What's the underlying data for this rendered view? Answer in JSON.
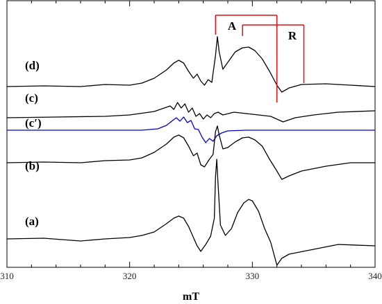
{
  "chart_data": {
    "type": "line",
    "xlabel": "mT",
    "xlim": [
      310,
      340
    ],
    "x_ticks": [
      310,
      320,
      330,
      340
    ],
    "y_axis_visible": false,
    "grid": false,
    "legend": "none",
    "colors": {
      "experimental": "#000000",
      "simulation": "#0000cc",
      "bracket": "#dd1111"
    },
    "series": [
      {
        "name": "(d)",
        "color": "#000000",
        "baseline": 125,
        "points": [
          [
            310,
            0
          ],
          [
            313,
            1
          ],
          [
            316,
            0
          ],
          [
            318,
            3
          ],
          [
            320,
            2
          ],
          [
            321,
            5
          ],
          [
            322,
            12
          ],
          [
            323,
            24
          ],
          [
            323.6,
            34
          ],
          [
            324,
            38
          ],
          [
            324.4,
            34
          ],
          [
            324.8,
            22
          ],
          [
            325.2,
            12
          ],
          [
            325.5,
            18
          ],
          [
            325.8,
            8
          ],
          [
            326.1,
            2
          ],
          [
            326.4,
            10
          ],
          [
            326.7,
            6
          ],
          [
            327.0,
            45
          ],
          [
            327.15,
            72
          ],
          [
            327.3,
            50
          ],
          [
            327.6,
            25
          ],
          [
            328.0,
            35
          ],
          [
            328.6,
            50
          ],
          [
            329.2,
            56
          ],
          [
            329.7,
            57
          ],
          [
            330.2,
            52
          ],
          [
            330.8,
            40
          ],
          [
            331.4,
            22
          ],
          [
            332.0,
            2
          ],
          [
            332.4,
            -8
          ],
          [
            333,
            -2
          ],
          [
            334,
            3
          ],
          [
            336,
            4
          ],
          [
            338,
            2
          ],
          [
            340,
            0
          ]
        ]
      },
      {
        "name": "(c)",
        "color": "#000000",
        "baseline": 170,
        "points": [
          [
            310,
            0
          ],
          [
            314,
            1
          ],
          [
            318,
            2
          ],
          [
            320,
            4
          ],
          [
            322,
            9
          ],
          [
            323.3,
            17
          ],
          [
            323.6,
            12
          ],
          [
            323.9,
            22
          ],
          [
            324.2,
            14
          ],
          [
            324.5,
            20
          ],
          [
            324.8,
            8
          ],
          [
            325.1,
            14
          ],
          [
            325.4,
            2
          ],
          [
            325.7,
            6
          ],
          [
            326.0,
            -2
          ],
          [
            326.3,
            4
          ],
          [
            326.6,
            0
          ],
          [
            326.9,
            6
          ],
          [
            327.2,
            8
          ],
          [
            327.6,
            4
          ],
          [
            328.5,
            8
          ],
          [
            329.5,
            6
          ],
          [
            330.5,
            4
          ],
          [
            331.5,
            2
          ],
          [
            332.5,
            -6
          ],
          [
            333.5,
            0
          ],
          [
            335,
            4
          ],
          [
            337,
            8
          ],
          [
            340,
            10
          ]
        ]
      },
      {
        "name": "(c′)",
        "color": "#0000cc",
        "baseline": 188,
        "points": [
          [
            310,
            0
          ],
          [
            321,
            0
          ],
          [
            322.3,
            2
          ],
          [
            323.0,
            7
          ],
          [
            323.5,
            14
          ],
          [
            323.8,
            18
          ],
          [
            324.1,
            13
          ],
          [
            324.4,
            19
          ],
          [
            324.7,
            11
          ],
          [
            325.0,
            14
          ],
          [
            325.3,
            2
          ],
          [
            325.6,
            1
          ],
          [
            325.9,
            -10
          ],
          [
            326.2,
            -18
          ],
          [
            326.5,
            -12
          ],
          [
            326.8,
            -16
          ],
          [
            327.1,
            -8
          ],
          [
            327.5,
            -4
          ],
          [
            328.0,
            -1
          ],
          [
            329.5,
            0
          ],
          [
            340,
            0
          ]
        ]
      },
      {
        "name": "(b)",
        "color": "#000000",
        "baseline": 235,
        "points": [
          [
            310,
            0
          ],
          [
            313,
            1
          ],
          [
            316,
            0
          ],
          [
            318,
            3
          ],
          [
            320,
            4
          ],
          [
            321,
            7
          ],
          [
            322,
            15
          ],
          [
            323,
            27
          ],
          [
            323.6,
            37
          ],
          [
            324,
            40
          ],
          [
            324.4,
            36
          ],
          [
            324.8,
            24
          ],
          [
            325.2,
            10
          ],
          [
            325.5,
            14
          ],
          [
            325.8,
            -3
          ],
          [
            326.1,
            -6
          ],
          [
            326.5,
            5
          ],
          [
            326.8,
            12
          ],
          [
            327.0,
            45
          ],
          [
            327.15,
            53
          ],
          [
            327.3,
            40
          ],
          [
            327.6,
            20
          ],
          [
            328.0,
            22
          ],
          [
            328.6,
            30
          ],
          [
            329.2,
            36
          ],
          [
            329.7,
            37
          ],
          [
            330.2,
            33
          ],
          [
            330.8,
            24
          ],
          [
            331.4,
            5
          ],
          [
            332.0,
            -12
          ],
          [
            332.4,
            -24
          ],
          [
            333,
            -19
          ],
          [
            334,
            -12
          ],
          [
            336,
            -5
          ],
          [
            338,
            0
          ],
          [
            340,
            0
          ]
        ]
      },
      {
        "name": "(a)",
        "color": "#000000",
        "baseline": 345,
        "points": [
          [
            310,
            0
          ],
          [
            313,
            1
          ],
          [
            316,
            -3
          ],
          [
            318,
            0
          ],
          [
            320,
            2
          ],
          [
            321,
            5
          ],
          [
            322,
            10
          ],
          [
            323,
            22
          ],
          [
            323.6,
            30
          ],
          [
            324,
            33
          ],
          [
            324.4,
            30
          ],
          [
            324.8,
            18
          ],
          [
            325.2,
            2
          ],
          [
            325.5,
            -10
          ],
          [
            325.8,
            -18
          ],
          [
            326.2,
            -8
          ],
          [
            326.6,
            4
          ],
          [
            326.9,
            30
          ],
          [
            327.0,
            90
          ],
          [
            327.1,
            115
          ],
          [
            327.2,
            80
          ],
          [
            327.4,
            20
          ],
          [
            327.8,
            5
          ],
          [
            328.3,
            15
          ],
          [
            328.8,
            38
          ],
          [
            329.3,
            52
          ],
          [
            329.7,
            57
          ],
          [
            330.0,
            55
          ],
          [
            330.5,
            40
          ],
          [
            331.0,
            15
          ],
          [
            331.5,
            -5
          ],
          [
            332.0,
            -38
          ],
          [
            332.4,
            -28
          ],
          [
            333,
            -22
          ],
          [
            335,
            -15
          ],
          [
            337,
            -8
          ],
          [
            340,
            -10
          ]
        ]
      }
    ],
    "annotations": [
      {
        "label": "A",
        "bar_start": 327,
        "bar_end": 332
      },
      {
        "label": "R",
        "bar_start": 329.2,
        "bar_end": 334.2
      }
    ]
  }
}
